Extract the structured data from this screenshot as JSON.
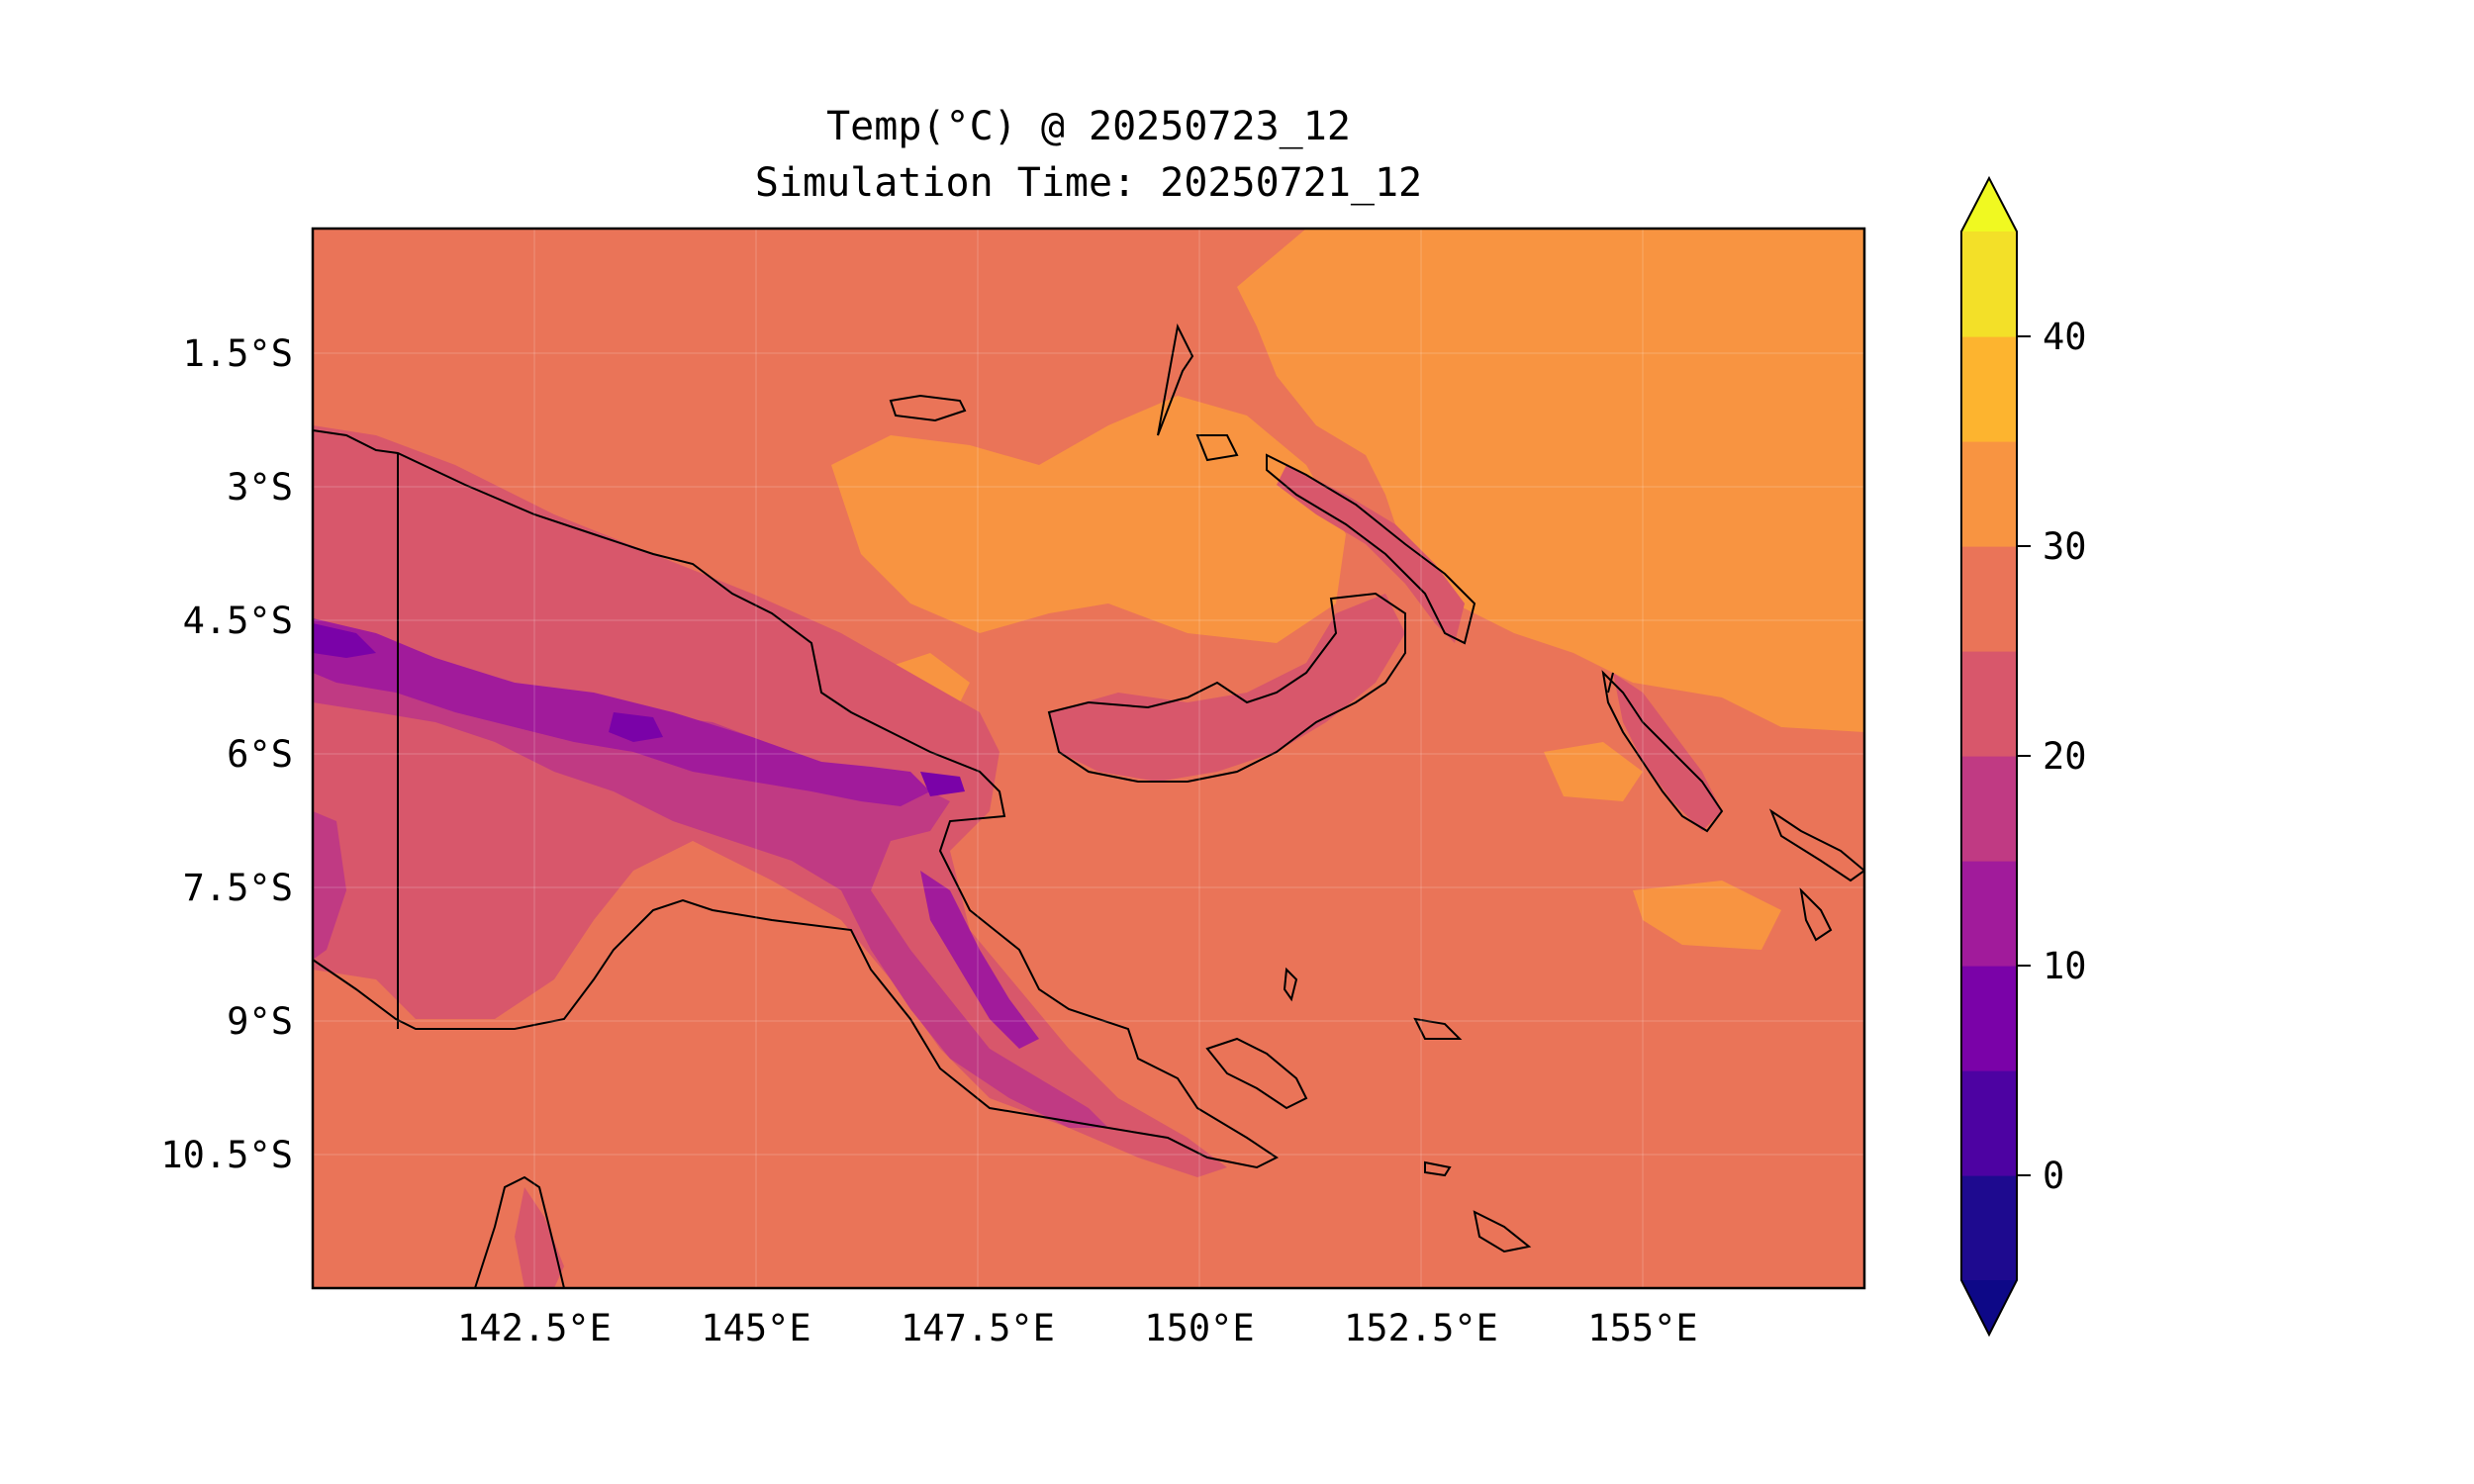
{
  "map": {
    "title_line1": "Temp(°C) @ 20250723_12",
    "title_line2": "Simulation Time: 20250721_12",
    "lon_ticks": [
      {
        "value": 142.5,
        "label": "142.5°E"
      },
      {
        "value": 145.0,
        "label": "145°E"
      },
      {
        "value": 147.5,
        "label": "147.5°E"
      },
      {
        "value": 150.0,
        "label": "150°E"
      },
      {
        "value": 152.5,
        "label": "152.5°E"
      },
      {
        "value": 155.0,
        "label": "155°E"
      }
    ],
    "lat_ticks": [
      {
        "value": -1.5,
        "label": "1.5°S"
      },
      {
        "value": -3.0,
        "label": "3°S"
      },
      {
        "value": -4.5,
        "label": "4.5°S"
      },
      {
        "value": -6.0,
        "label": "6°S"
      },
      {
        "value": -7.5,
        "label": "7.5°S"
      },
      {
        "value": -9.0,
        "label": "9°S"
      },
      {
        "value": -10.5,
        "label": "10.5°S"
      }
    ],
    "extent": {
      "lon_min": 140.0,
      "lon_max": 157.5,
      "lat_min": -12.0,
      "lat_max": -0.1
    },
    "background_color": "#ea7458"
  },
  "colorbar": {
    "range": [
      -5,
      45
    ],
    "levels": [
      -5,
      0,
      5,
      10,
      15,
      20,
      25,
      30,
      35,
      40,
      45
    ],
    "colors": [
      "#1e0a8f",
      "#4d02a2",
      "#7a02a8",
      "#a11b9b",
      "#c03a83",
      "#d8576b",
      "#ea7458",
      "#f89441",
      "#fdb42f",
      "#f3e028"
    ],
    "under_color": "#0d0887",
    "over_color": "#f0f921",
    "ticks": [
      {
        "value": 0,
        "label": "0"
      },
      {
        "value": 10,
        "label": "10"
      },
      {
        "value": 20,
        "label": "20"
      },
      {
        "value": 30,
        "label": "30"
      },
      {
        "value": 40,
        "label": "40"
      }
    ]
  }
}
